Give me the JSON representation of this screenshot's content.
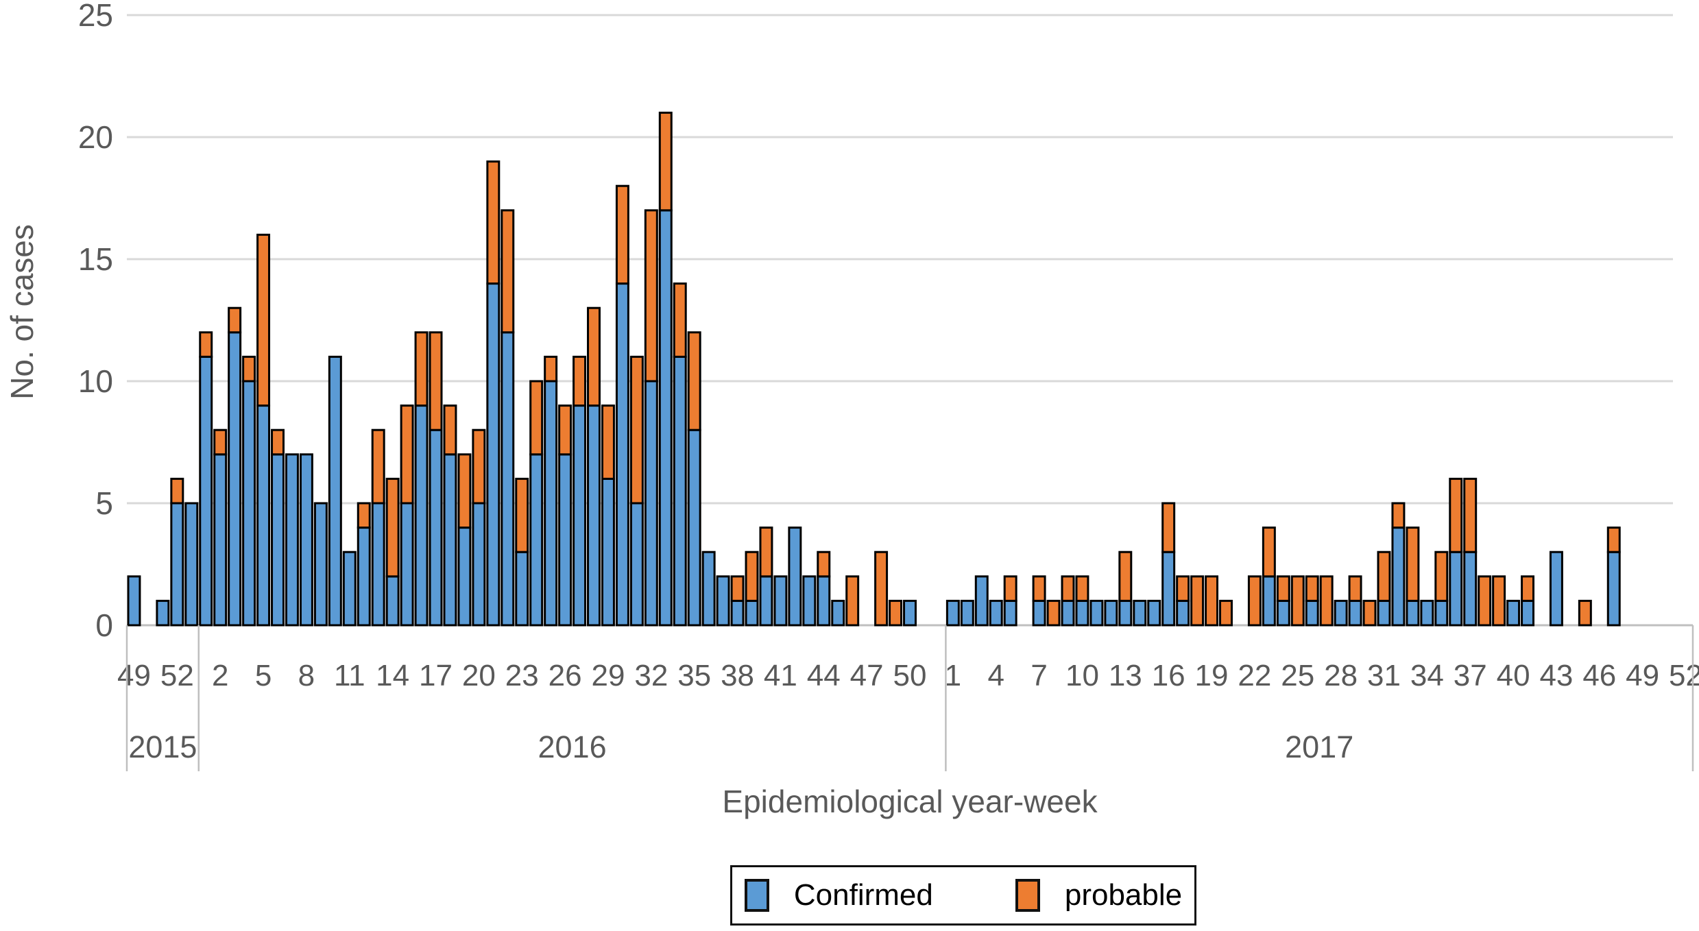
{
  "chart_data": {
    "type": "bar",
    "stacked": true,
    "title": "",
    "ylabel": "No. of cases",
    "xlabel": "Epidemiological year-week",
    "ylim": [
      0,
      25
    ],
    "yticks": [
      0,
      5,
      10,
      15,
      20,
      25
    ],
    "grid": "horizontal",
    "legend_position": "bottom-center",
    "legend": [
      {
        "name": "Confirmed",
        "color": "#5B9BD5"
      },
      {
        "name": "probable",
        "color": "#ED7D31"
      }
    ],
    "bar_outline_color": "#000000",
    "axis_text_color": "#595959",
    "gridline_color": "#D9D9D9",
    "band_line_color": "#BFBFBF",
    "tick_label_every": 3,
    "groups": [
      {
        "year": "2015",
        "start_week": 49,
        "tick_labels": [
          49,
          52
        ],
        "confirmed": [
          2,
          0,
          1,
          5,
          5
        ],
        "probable": [
          0,
          0,
          0,
          1,
          0
        ]
      },
      {
        "year": "2016",
        "start_week": 1,
        "tick_labels": [
          2,
          5,
          8,
          11,
          14,
          17,
          20,
          23,
          26,
          29,
          32,
          35,
          38,
          41,
          44,
          47,
          50
        ],
        "confirmed": [
          11,
          7,
          12,
          10,
          9,
          7,
          7,
          7,
          5,
          11,
          3,
          4,
          5,
          2,
          5,
          9,
          8,
          7,
          4,
          5,
          14,
          12,
          3,
          7,
          10,
          7,
          9,
          9,
          6,
          14,
          5,
          10,
          17,
          11,
          8,
          3,
          2,
          1,
          1,
          2,
          2,
          4,
          2,
          2,
          1,
          0,
          0,
          0,
          0,
          1,
          0,
          0
        ],
        "probable": [
          1,
          1,
          1,
          1,
          7,
          1,
          0,
          0,
          0,
          0,
          0,
          1,
          3,
          4,
          4,
          3,
          4,
          2,
          3,
          3,
          5,
          5,
          3,
          3,
          1,
          2,
          2,
          4,
          3,
          4,
          6,
          7,
          4,
          3,
          4,
          0,
          0,
          1,
          2,
          2,
          0,
          0,
          0,
          1,
          0,
          2,
          0,
          3,
          1,
          0,
          0,
          0
        ]
      },
      {
        "year": "2017",
        "start_week": 1,
        "tick_labels": [
          1,
          4,
          7,
          10,
          13,
          16,
          19,
          22,
          25,
          28,
          31,
          34,
          37,
          40,
          43,
          46,
          49,
          52
        ],
        "confirmed": [
          1,
          1,
          2,
          1,
          1,
          0,
          1,
          0,
          1,
          1,
          1,
          1,
          1,
          1,
          1,
          3,
          1,
          0,
          0,
          0,
          0,
          0,
          2,
          1,
          0,
          1,
          0,
          1,
          1,
          0,
          1,
          4,
          1,
          1,
          1,
          3,
          3,
          0,
          0,
          1,
          1,
          0,
          3,
          0,
          0,
          0,
          3,
          0,
          0,
          0,
          0,
          0
        ],
        "probable": [
          0,
          0,
          0,
          0,
          1,
          0,
          1,
          1,
          1,
          1,
          0,
          0,
          2,
          0,
          0,
          2,
          1,
          2,
          2,
          1,
          0,
          2,
          2,
          1,
          2,
          1,
          2,
          0,
          1,
          1,
          2,
          1,
          3,
          0,
          2,
          3,
          3,
          2,
          2,
          0,
          1,
          0,
          0,
          0,
          1,
          0,
          1,
          0,
          0,
          0,
          0,
          0
        ]
      }
    ]
  }
}
